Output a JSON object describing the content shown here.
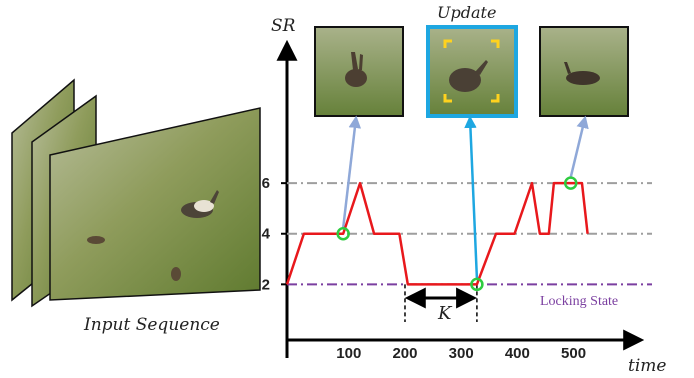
{
  "figure": {
    "input_label": "Input Sequence",
    "update_label": "Update",
    "locking_label": "Locking State",
    "k_label": "K",
    "frame_icons": [
      "video-frame",
      "rabbit-thumbnail",
      "focus-brackets-icon"
    ]
  },
  "chart_data": {
    "type": "line",
    "xlabel": "time",
    "ylabel": "SR",
    "x_ticks": [
      "100",
      "200",
      "300",
      "400",
      "500"
    ],
    "y_ticks": [
      "2",
      "4",
      "6"
    ],
    "xlim": [
      -10,
      590
    ],
    "ylim": [
      -0.2,
      11.5
    ],
    "grid": "dash-dot reference lines at 2, 4, 6",
    "series": [
      {
        "color": "#e8181c",
        "x": [
          -10,
          20,
          90,
          120,
          145,
          190,
          205,
          320,
          328,
          362,
          395,
          426,
          440,
          456,
          465,
          490,
          495,
          500,
          515,
          525
        ],
        "y": [
          2,
          4,
          4,
          6,
          4,
          4,
          2,
          2,
          2,
          4,
          4,
          6,
          4,
          4,
          6,
          6,
          6,
          6,
          6,
          4
        ]
      }
    ],
    "markers": [
      {
        "x": 90,
        "y": 4
      },
      {
        "x": 328,
        "y": 2
      },
      {
        "x": 495,
        "y": 6
      }
    ],
    "locking_level": 2,
    "k_span": [
      180,
      328
    ],
    "colors": {
      "line": "#e8181c",
      "marker": "#2ecc40",
      "ref": "#9e9e9e",
      "locking": "#7b3fa0",
      "update": "#1ea7e1",
      "arrow": "#8fa8d8"
    }
  }
}
